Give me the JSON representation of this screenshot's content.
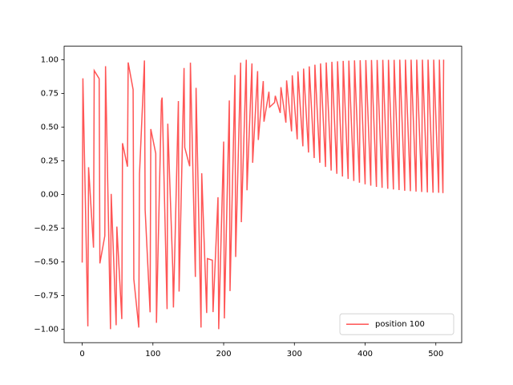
{
  "chart_data": {
    "type": "line",
    "x": [
      0,
      1,
      8,
      9,
      16,
      17,
      24,
      25,
      32,
      33,
      40,
      41,
      48,
      49,
      56,
      57,
      64,
      65,
      72,
      73,
      80,
      81,
      88,
      89,
      96,
      97,
      104,
      105,
      112,
      113,
      120,
      121,
      128,
      129,
      136,
      137,
      144,
      145,
      152,
      153,
      160,
      161,
      168,
      169,
      176,
      177,
      184,
      185,
      192,
      193,
      200,
      201,
      208,
      209,
      216,
      217,
      224,
      225,
      232,
      233,
      240,
      241,
      248,
      249,
      256,
      257,
      264,
      265,
      272,
      273,
      280,
      281,
      288,
      289,
      296,
      297,
      304,
      305,
      312,
      313,
      320,
      321,
      328,
      329,
      336,
      337,
      344,
      345,
      352,
      353,
      360,
      361,
      368,
      369,
      376,
      377,
      384,
      385,
      392,
      393,
      400,
      401,
      408,
      409,
      416,
      417,
      424,
      425,
      432,
      433,
      440,
      441,
      448,
      449,
      456,
      457,
      464,
      465,
      472,
      473,
      480,
      481,
      488,
      489,
      496,
      497,
      504,
      505,
      510,
      511
    ],
    "series": [
      {
        "name": "position 100",
        "color": "#ff5555",
        "values": [
          -0.506,
          0.862,
          -0.979,
          0.202,
          -0.395,
          0.919,
          0.859,
          -0.512,
          -0.307,
          0.952,
          -1.0,
          0.004,
          -0.971,
          -0.239,
          -0.925,
          0.38,
          0.206,
          0.979,
          0.778,
          -0.629,
          -0.988,
          0.151,
          0.994,
          -0.114,
          -0.875,
          0.485,
          0.304,
          -0.953,
          0.696,
          0.719,
          -0.851,
          0.525,
          -0.544,
          -0.839,
          0.693,
          -0.721,
          0.938,
          0.348,
          0.209,
          0.978,
          -0.612,
          0.791,
          -0.988,
          0.157,
          -0.88,
          -0.476,
          -0.488,
          -0.873,
          -0.021,
          -1.0,
          0.392,
          -0.92,
          0.697,
          -0.717,
          0.886,
          -0.464,
          0.978,
          -0.206,
          0.9995,
          0.031,
          0.972,
          0.235,
          0.915,
          0.404,
          0.841,
          0.54,
          0.762,
          0.648,
          0.682,
          0.732,
          0.605,
          0.796,
          0.533,
          0.846,
          0.468,
          0.884,
          0.409,
          0.912,
          0.357,
          0.934,
          0.311,
          0.95,
          0.27,
          0.963,
          0.235,
          0.972,
          0.204,
          0.979,
          0.177,
          0.984,
          0.153,
          0.988,
          0.133,
          0.991,
          0.115,
          0.993,
          0.1,
          0.995,
          0.087,
          0.996,
          0.075,
          0.997,
          0.065,
          0.998,
          0.056,
          0.998,
          0.049,
          0.999,
          0.042,
          0.999,
          0.037,
          0.999,
          0.032,
          1.0,
          0.027,
          1.0,
          0.024,
          1.0,
          0.021,
          1.0,
          0.018,
          1.0,
          0.015,
          1.0,
          0.013,
          1.0,
          0.012,
          1.0,
          0.01,
          1.0
        ]
      }
    ],
    "xlim": [
      -25.55,
      536.55
    ],
    "xticks": [
      0,
      100,
      200,
      300,
      400,
      500
    ],
    "ylim": [
      -1.1,
      1.1
    ],
    "yticks": [
      {
        "value": -1,
        "label": "−1.00"
      },
      {
        "value": -0.75,
        "label": "−0.75"
      },
      {
        "value": -0.5,
        "label": "−0.50"
      },
      {
        "value": -0.25,
        "label": "−0.25"
      },
      {
        "value": 0,
        "label": "0.00"
      },
      {
        "value": 0.25,
        "label": "0.25"
      },
      {
        "value": 0.5,
        "label": "0.50"
      },
      {
        "value": 0.75,
        "label": "0.75"
      },
      {
        "value": 1,
        "label": "1.00"
      }
    ],
    "legend": "lower right"
  }
}
